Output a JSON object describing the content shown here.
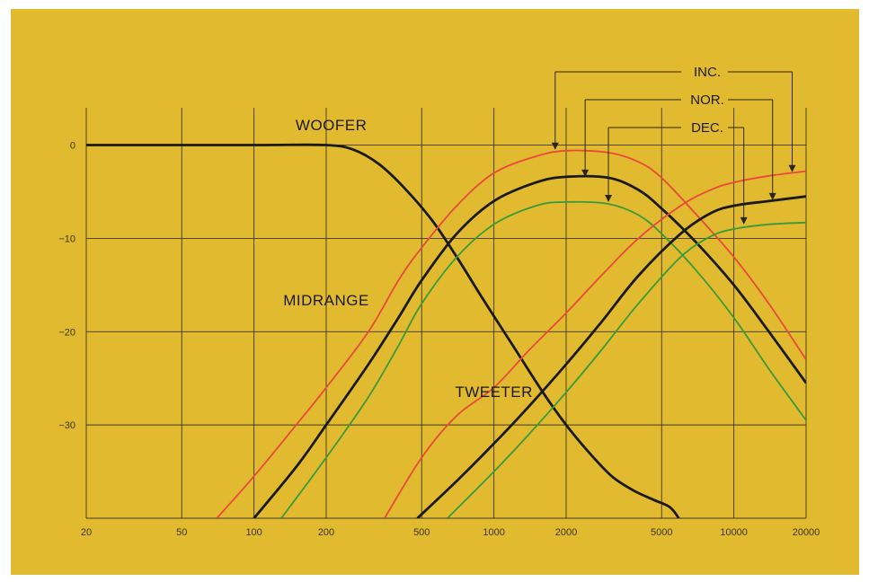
{
  "chart_data": {
    "type": "line",
    "title": "",
    "xlabel": "",
    "ylabel": "",
    "x_scale": "log",
    "xlim": [
      20,
      20000
    ],
    "ylim": [
      -40,
      4
    ],
    "grid": true,
    "x_ticks": [
      20,
      50,
      100,
      200,
      500,
      1000,
      2000,
      5000,
      10000,
      20000
    ],
    "x_tick_labels": [
      "20",
      "50",
      "100",
      "200",
      "500",
      "1000",
      "2000",
      "5000",
      "10000",
      "20000"
    ],
    "y_ticks": [
      0,
      -10,
      -20,
      -30
    ],
    "y_tick_labels": [
      "0",
      "−10",
      "−20",
      "−30"
    ],
    "curve_labels": {
      "woofer": "WOOFER",
      "midrange": "MIDRANGE",
      "tweeter": "TWEETER"
    },
    "legend": [
      {
        "label": "INC.",
        "color": "#e8493a"
      },
      {
        "label": "NOR.",
        "color": "#1a1a1a"
      },
      {
        "label": "DEC.",
        "color": "#3a9a3a"
      }
    ],
    "series": [
      {
        "key": "woofer",
        "color": "#1a1a1a",
        "points": [
          [
            20,
            0
          ],
          [
            100,
            0
          ],
          [
            200,
            0
          ],
          [
            260,
            -0.5
          ],
          [
            330,
            -2
          ],
          [
            420,
            -4.5
          ],
          [
            550,
            -8
          ],
          [
            700,
            -12
          ],
          [
            900,
            -16.5
          ],
          [
            1200,
            -21.5
          ],
          [
            1600,
            -26.5
          ],
          [
            2000,
            -30
          ],
          [
            2500,
            -33
          ],
          [
            3100,
            -35.5
          ],
          [
            3800,
            -37
          ],
          [
            4600,
            -38
          ],
          [
            5400,
            -38.8
          ],
          [
            5900,
            -40
          ]
        ]
      },
      {
        "key": "midrange-inc",
        "color": "#e8493a",
        "points": [
          [
            70,
            -40
          ],
          [
            100,
            -35.5
          ],
          [
            150,
            -30
          ],
          [
            200,
            -26
          ],
          [
            300,
            -20
          ],
          [
            400,
            -14.5
          ],
          [
            500,
            -11
          ],
          [
            700,
            -6.5
          ],
          [
            1000,
            -3
          ],
          [
            1500,
            -1.2
          ],
          [
            2000,
            -0.6
          ],
          [
            3000,
            -0.8
          ],
          [
            4000,
            -1.8
          ],
          [
            5000,
            -3.5
          ],
          [
            7000,
            -7.5
          ],
          [
            10000,
            -12
          ],
          [
            14000,
            -17
          ],
          [
            20000,
            -23
          ]
        ]
      },
      {
        "key": "midrange-nor",
        "color": "#1a1a1a",
        "points": [
          [
            100,
            -40
          ],
          [
            150,
            -34.5
          ],
          [
            200,
            -30
          ],
          [
            300,
            -23.5
          ],
          [
            400,
            -18.5
          ],
          [
            500,
            -14.5
          ],
          [
            700,
            -9.5
          ],
          [
            1000,
            -6
          ],
          [
            1500,
            -4
          ],
          [
            2000,
            -3.4
          ],
          [
            3000,
            -3.5
          ],
          [
            4000,
            -4.8
          ],
          [
            5000,
            -6.8
          ],
          [
            7000,
            -10.5
          ],
          [
            10000,
            -15
          ],
          [
            14000,
            -20
          ],
          [
            20000,
            -25.5
          ]
        ]
      },
      {
        "key": "midrange-dec",
        "color": "#3a9a3a",
        "points": [
          [
            130,
            -40
          ],
          [
            200,
            -33.5
          ],
          [
            300,
            -27
          ],
          [
            400,
            -21.5
          ],
          [
            500,
            -17
          ],
          [
            700,
            -12
          ],
          [
            1000,
            -8.5
          ],
          [
            1500,
            -6.5
          ],
          [
            2000,
            -6.1
          ],
          [
            3000,
            -6.3
          ],
          [
            4000,
            -7.5
          ],
          [
            5000,
            -9.5
          ],
          [
            7000,
            -13.5
          ],
          [
            10000,
            -18.5
          ],
          [
            14000,
            -24
          ],
          [
            20000,
            -29.5
          ]
        ]
      },
      {
        "key": "tweeter-inc",
        "color": "#e8493a",
        "points": [
          [
            350,
            -40
          ],
          [
            500,
            -33.5
          ],
          [
            700,
            -29
          ],
          [
            1000,
            -26
          ],
          [
            1400,
            -22
          ],
          [
            2000,
            -18
          ],
          [
            2800,
            -14
          ],
          [
            4000,
            -10
          ],
          [
            6000,
            -6.5
          ],
          [
            8000,
            -4.8
          ],
          [
            10000,
            -4
          ],
          [
            14000,
            -3.3
          ],
          [
            20000,
            -2.8
          ]
        ]
      },
      {
        "key": "tweeter-nor",
        "color": "#1a1a1a",
        "points": [
          [
            480,
            -40
          ],
          [
            700,
            -36
          ],
          [
            1000,
            -32
          ],
          [
            1400,
            -28
          ],
          [
            2000,
            -23.5
          ],
          [
            2800,
            -19
          ],
          [
            4000,
            -14
          ],
          [
            6000,
            -9.5
          ],
          [
            8000,
            -7.3
          ],
          [
            10000,
            -6.5
          ],
          [
            14000,
            -6
          ],
          [
            20000,
            -5.5
          ]
        ]
      },
      {
        "key": "tweeter-dec",
        "color": "#3a9a3a",
        "points": [
          [
            640,
            -40
          ],
          [
            1000,
            -35
          ],
          [
            1400,
            -31
          ],
          [
            2000,
            -26.5
          ],
          [
            2800,
            -22
          ],
          [
            4000,
            -17
          ],
          [
            6000,
            -12
          ],
          [
            8000,
            -9.8
          ],
          [
            10000,
            -9
          ],
          [
            14000,
            -8.5
          ],
          [
            20000,
            -8.3
          ]
        ]
      }
    ]
  }
}
